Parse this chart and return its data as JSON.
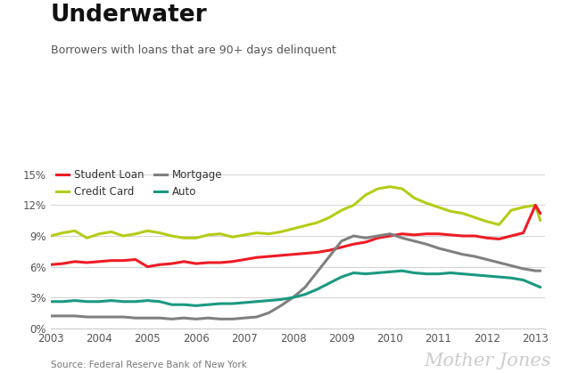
{
  "title": "Underwater",
  "subtitle": "Borrowers with loans that are 90+ days delinquent",
  "source": "Source: Federal Reserve Bank of New York",
  "watermark": "Mother Jones",
  "background_color": "#ffffff",
  "xlim": [
    2003.0,
    2013.2
  ],
  "ylim": [
    0,
    0.16
  ],
  "yticks": [
    0,
    0.03,
    0.06,
    0.09,
    0.12,
    0.15
  ],
  "ytick_labels": [
    "0%",
    "3%",
    "6%",
    "9%",
    "12%",
    "15%"
  ],
  "xtick_labels": [
    "2003",
    "2004",
    "2005",
    "2006",
    "2007",
    "2008",
    "2009",
    "2010",
    "2011",
    "2012",
    "2013"
  ],
  "series": {
    "student_loan": {
      "label": "Student Loan",
      "color": "#ee1c25",
      "linewidth": 2.2,
      "x": [
        2003.0,
        2003.25,
        2003.5,
        2003.75,
        2004.0,
        2004.25,
        2004.5,
        2004.75,
        2005.0,
        2005.25,
        2005.5,
        2005.75,
        2006.0,
        2006.25,
        2006.5,
        2006.75,
        2007.0,
        2007.25,
        2007.5,
        2007.75,
        2008.0,
        2008.25,
        2008.5,
        2008.75,
        2009.0,
        2009.25,
        2009.5,
        2009.75,
        2010.0,
        2010.25,
        2010.5,
        2010.75,
        2011.0,
        2011.25,
        2011.5,
        2011.75,
        2012.0,
        2012.25,
        2012.5,
        2012.75,
        2013.0,
        2013.1
      ],
      "y": [
        0.062,
        0.063,
        0.065,
        0.064,
        0.065,
        0.066,
        0.066,
        0.067,
        0.06,
        0.062,
        0.063,
        0.065,
        0.063,
        0.064,
        0.064,
        0.065,
        0.067,
        0.069,
        0.07,
        0.071,
        0.072,
        0.073,
        0.074,
        0.076,
        0.079,
        0.082,
        0.084,
        0.088,
        0.09,
        0.092,
        0.091,
        0.092,
        0.092,
        0.091,
        0.09,
        0.09,
        0.088,
        0.087,
        0.09,
        0.093,
        0.12,
        0.112
      ]
    },
    "credit_card": {
      "label": "Credit Card",
      "color": "#b5cc18",
      "linewidth": 2.2,
      "x": [
        2003.0,
        2003.25,
        2003.5,
        2003.75,
        2004.0,
        2004.25,
        2004.5,
        2004.75,
        2005.0,
        2005.25,
        2005.5,
        2005.75,
        2006.0,
        2006.25,
        2006.5,
        2006.75,
        2007.0,
        2007.25,
        2007.5,
        2007.75,
        2008.0,
        2008.25,
        2008.5,
        2008.75,
        2009.0,
        2009.25,
        2009.5,
        2009.75,
        2010.0,
        2010.25,
        2010.5,
        2010.75,
        2011.0,
        2011.25,
        2011.5,
        2011.75,
        2012.0,
        2012.25,
        2012.5,
        2012.75,
        2013.0,
        2013.1
      ],
      "y": [
        0.09,
        0.093,
        0.095,
        0.088,
        0.092,
        0.094,
        0.09,
        0.092,
        0.095,
        0.093,
        0.09,
        0.088,
        0.088,
        0.091,
        0.092,
        0.089,
        0.091,
        0.093,
        0.092,
        0.094,
        0.097,
        0.1,
        0.103,
        0.108,
        0.115,
        0.12,
        0.13,
        0.136,
        0.138,
        0.136,
        0.127,
        0.122,
        0.118,
        0.114,
        0.112,
        0.108,
        0.104,
        0.101,
        0.115,
        0.118,
        0.12,
        0.105
      ]
    },
    "mortgage": {
      "label": "Mortgage",
      "color": "#808080",
      "linewidth": 2.2,
      "x": [
        2003.0,
        2003.25,
        2003.5,
        2003.75,
        2004.0,
        2004.25,
        2004.5,
        2004.75,
        2005.0,
        2005.25,
        2005.5,
        2005.75,
        2006.0,
        2006.25,
        2006.5,
        2006.75,
        2007.0,
        2007.25,
        2007.5,
        2007.75,
        2008.0,
        2008.25,
        2008.5,
        2008.75,
        2009.0,
        2009.25,
        2009.5,
        2009.75,
        2010.0,
        2010.25,
        2010.5,
        2010.75,
        2011.0,
        2011.25,
        2011.5,
        2011.75,
        2012.0,
        2012.25,
        2012.5,
        2012.75,
        2013.0,
        2013.1
      ],
      "y": [
        0.012,
        0.012,
        0.012,
        0.011,
        0.011,
        0.011,
        0.011,
        0.01,
        0.01,
        0.01,
        0.009,
        0.01,
        0.009,
        0.01,
        0.009,
        0.009,
        0.01,
        0.011,
        0.015,
        0.022,
        0.03,
        0.04,
        0.055,
        0.07,
        0.085,
        0.09,
        0.088,
        0.09,
        0.092,
        0.088,
        0.085,
        0.082,
        0.078,
        0.075,
        0.072,
        0.07,
        0.067,
        0.064,
        0.061,
        0.058,
        0.056,
        0.056
      ]
    },
    "auto": {
      "label": "Auto",
      "color": "#1a9980",
      "linewidth": 2.2,
      "x": [
        2003.0,
        2003.25,
        2003.5,
        2003.75,
        2004.0,
        2004.25,
        2004.5,
        2004.75,
        2005.0,
        2005.25,
        2005.5,
        2005.75,
        2006.0,
        2006.25,
        2006.5,
        2006.75,
        2007.0,
        2007.25,
        2007.5,
        2007.75,
        2008.0,
        2008.25,
        2008.5,
        2008.75,
        2009.0,
        2009.25,
        2009.5,
        2009.75,
        2010.0,
        2010.25,
        2010.5,
        2010.75,
        2011.0,
        2011.25,
        2011.5,
        2011.75,
        2012.0,
        2012.25,
        2012.5,
        2012.75,
        2013.0,
        2013.1
      ],
      "y": [
        0.026,
        0.026,
        0.027,
        0.026,
        0.026,
        0.027,
        0.026,
        0.026,
        0.027,
        0.026,
        0.023,
        0.023,
        0.022,
        0.023,
        0.024,
        0.024,
        0.025,
        0.026,
        0.027,
        0.028,
        0.03,
        0.033,
        0.038,
        0.044,
        0.05,
        0.054,
        0.053,
        0.054,
        0.055,
        0.056,
        0.054,
        0.053,
        0.053,
        0.054,
        0.053,
        0.052,
        0.051,
        0.05,
        0.049,
        0.047,
        0.042,
        0.04
      ]
    }
  }
}
